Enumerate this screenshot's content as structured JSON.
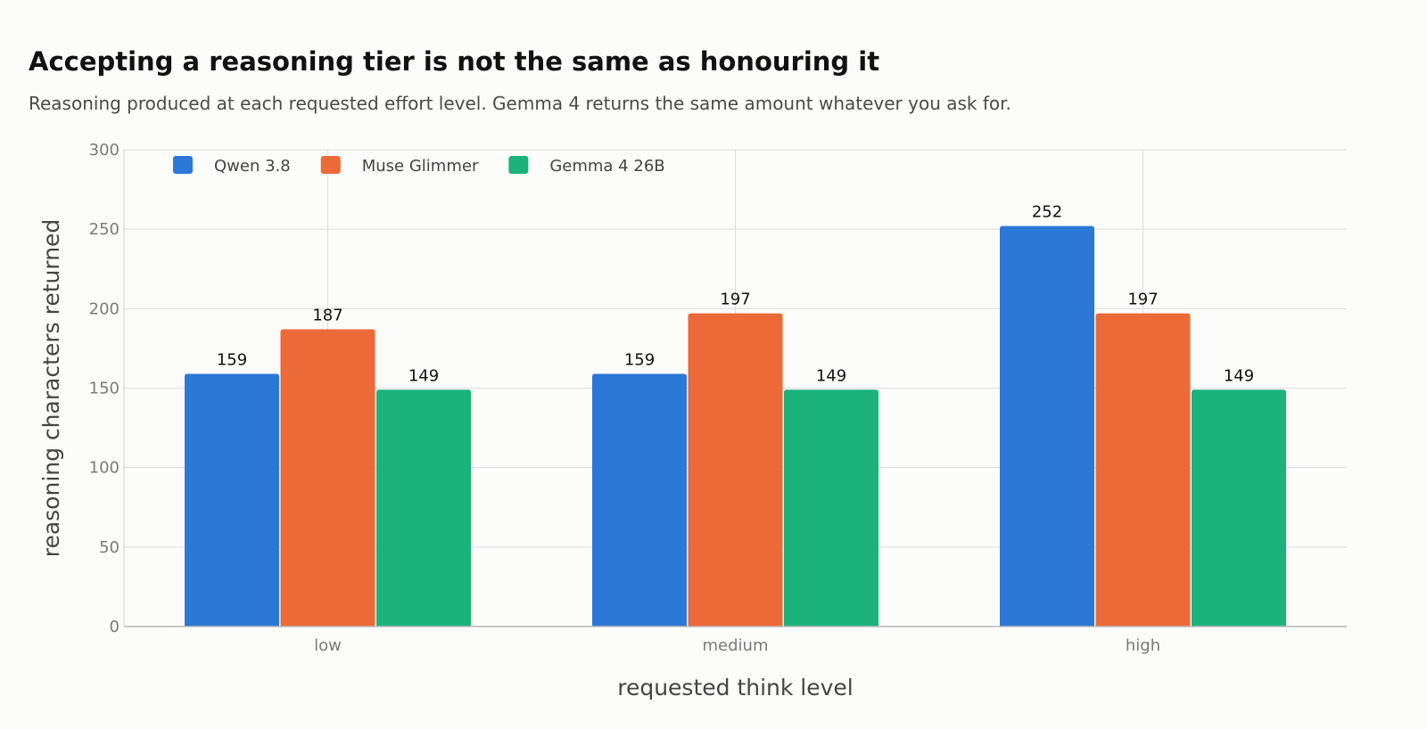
{
  "chart_data": {
    "type": "bar",
    "title": "Accepting a reasoning tier is not the same as honouring it",
    "subtitle": "Reasoning produced at each requested effort level. Gemma 4 returns the same amount whatever you ask for.",
    "xlabel": "requested think level",
    "ylabel": "reasoning characters returned",
    "categories": [
      "low",
      "medium",
      "high"
    ],
    "ylim": [
      0,
      300
    ],
    "yticks": [
      0,
      50,
      100,
      150,
      200,
      250,
      300
    ],
    "grid": true,
    "legend_position": "top-left",
    "series": [
      {
        "name": "Qwen 3.8",
        "color": "#2b78d6",
        "values": [
          159,
          159,
          252
        ]
      },
      {
        "name": "Muse Glimmer",
        "color": "#ec6a37",
        "values": [
          187,
          197,
          197
        ]
      },
      {
        "name": "Gemma 4 26B",
        "color": "#1bb27b",
        "values": [
          149,
          149,
          149
        ]
      }
    ]
  }
}
